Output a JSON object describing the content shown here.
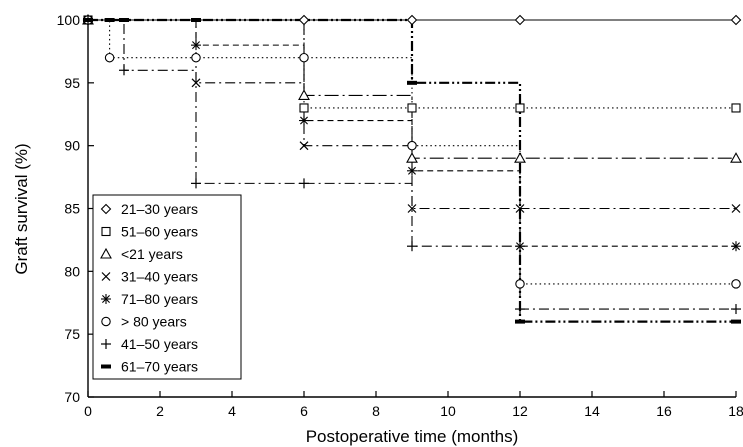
{
  "chart_data": {
    "type": "line",
    "subtype": "step (Kaplan-Meier survival)",
    "xlabel": "Postoperative time (months)",
    "ylabel": "Graft survival (%)",
    "xlim": [
      0,
      18
    ],
    "ylim": [
      70,
      100
    ],
    "xticks": [
      0,
      2,
      4,
      6,
      8,
      10,
      12,
      14,
      16,
      18
    ],
    "yticks": [
      70,
      75,
      80,
      85,
      90,
      95,
      100
    ],
    "grid": false,
    "legend_position": "bottom-left",
    "series": [
      {
        "name": "21–30 years",
        "marker": "diamond",
        "line": "solid",
        "x": [
          0,
          6,
          9,
          12,
          18
        ],
        "y": [
          100,
          100,
          100,
          100,
          100
        ]
      },
      {
        "name": "51–60 years",
        "marker": "square",
        "line": "dotted",
        "x": [
          0,
          6,
          9,
          12,
          18
        ],
        "y": [
          100,
          93,
          93,
          93,
          93
        ]
      },
      {
        "name": "<21 years",
        "marker": "triangle",
        "line": "dash-dot-long",
        "x": [
          0,
          6,
          9,
          12,
          18
        ],
        "y": [
          100,
          94,
          89,
          89,
          89
        ]
      },
      {
        "name": "31–40 years",
        "marker": "x",
        "line": "dash-dot",
        "x": [
          0,
          3,
          6,
          9,
          12,
          18
        ],
        "y": [
          100,
          95,
          90,
          85,
          85,
          85
        ]
      },
      {
        "name": "71–80 years",
        "marker": "asterisk",
        "line": "dashed",
        "x": [
          0,
          3,
          6,
          9,
          12,
          18
        ],
        "y": [
          100,
          98,
          92,
          88,
          82,
          82
        ]
      },
      {
        "name": "> 80 years",
        "marker": "circle",
        "line": "dotted",
        "x": [
          0,
          0.6,
          3,
          6,
          9,
          12,
          18
        ],
        "y": [
          100,
          97,
          97,
          97,
          90,
          79,
          79
        ]
      },
      {
        "name": "41–50 years",
        "marker": "plus",
        "line": "dash-dot",
        "x": [
          0,
          1,
          3,
          6,
          9,
          12,
          18
        ],
        "y": [
          100,
          96,
          87,
          87,
          82,
          77,
          77
        ]
      },
      {
        "name": "61–70 years",
        "marker": "bar",
        "line": "dash-dot-dot",
        "x": [
          0,
          0.6,
          1,
          3,
          9,
          12,
          18
        ],
        "y": [
          100,
          100,
          100,
          100,
          95,
          76,
          76
        ]
      }
    ]
  }
}
